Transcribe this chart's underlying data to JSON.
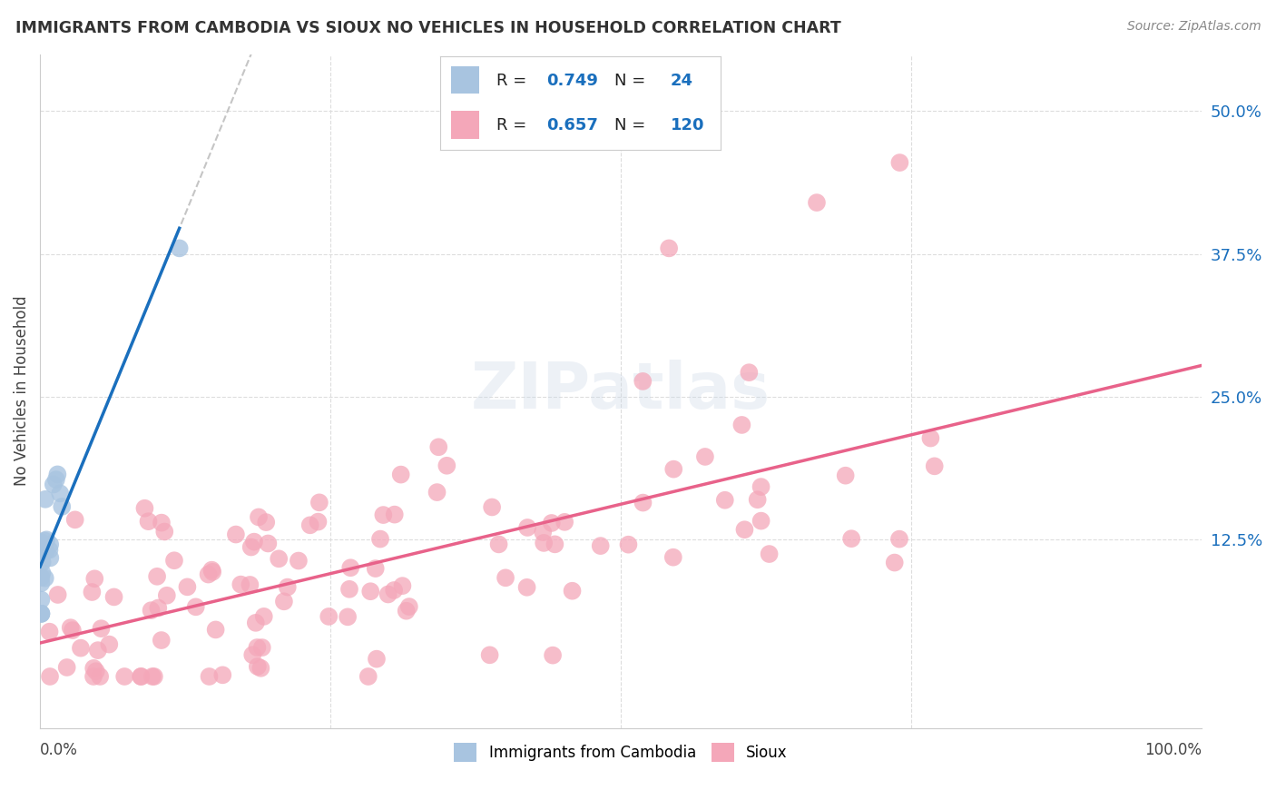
{
  "title": "IMMIGRANTS FROM CAMBODIA VS SIOUX NO VEHICLES IN HOUSEHOLD CORRELATION CHART",
  "source": "Source: ZipAtlas.com",
  "ylabel": "No Vehicles in Household",
  "yticks": [
    "12.5%",
    "25.0%",
    "37.5%",
    "50.0%"
  ],
  "ytick_vals": [
    0.125,
    0.25,
    0.375,
    0.5
  ],
  "cambodia_color": "#a8c4e0",
  "sioux_color": "#f4a7b9",
  "cambodia_line_color": "#1a6fbd",
  "sioux_line_color": "#e8628a",
  "background_color": "#ffffff",
  "grid_color": "#dddddd",
  "title_color": "#333333",
  "source_color": "#888888",
  "legend_text_color": "#1a6fbd",
  "xlim": [
    0.0,
    1.0
  ],
  "ylim": [
    -0.04,
    0.55
  ],
  "figsize": [
    14.06,
    8.92
  ],
  "dpi": 100
}
